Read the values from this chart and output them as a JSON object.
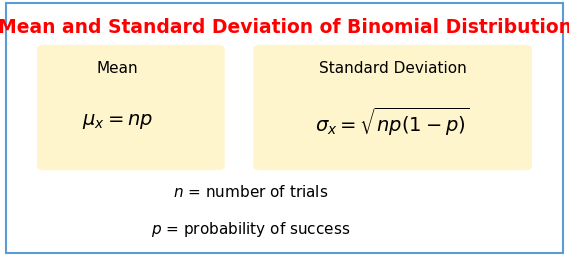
{
  "title": "Mean and Standard Deviation of Binomial Distribution",
  "title_color": "#FF0000",
  "title_fontsize": 13.5,
  "title_fontweight": "bold",
  "bg_color": "#FFFFFF",
  "border_color": "#5B9BD5",
  "box_color": "#FFF5CC",
  "box_edge_color": "#FFF5CC",
  "mean_label": "Mean",
  "mean_formula": "$\\mu_x = np$",
  "std_label": "Standard Deviation",
  "std_formula": "$\\sigma_x = \\sqrt{np(1-p)}$",
  "note1": "$n$ = number of trials",
  "note2": "$p$ = probability of success",
  "label_fontsize": 11,
  "formula_fontsize": 14,
  "note_fontsize": 11
}
